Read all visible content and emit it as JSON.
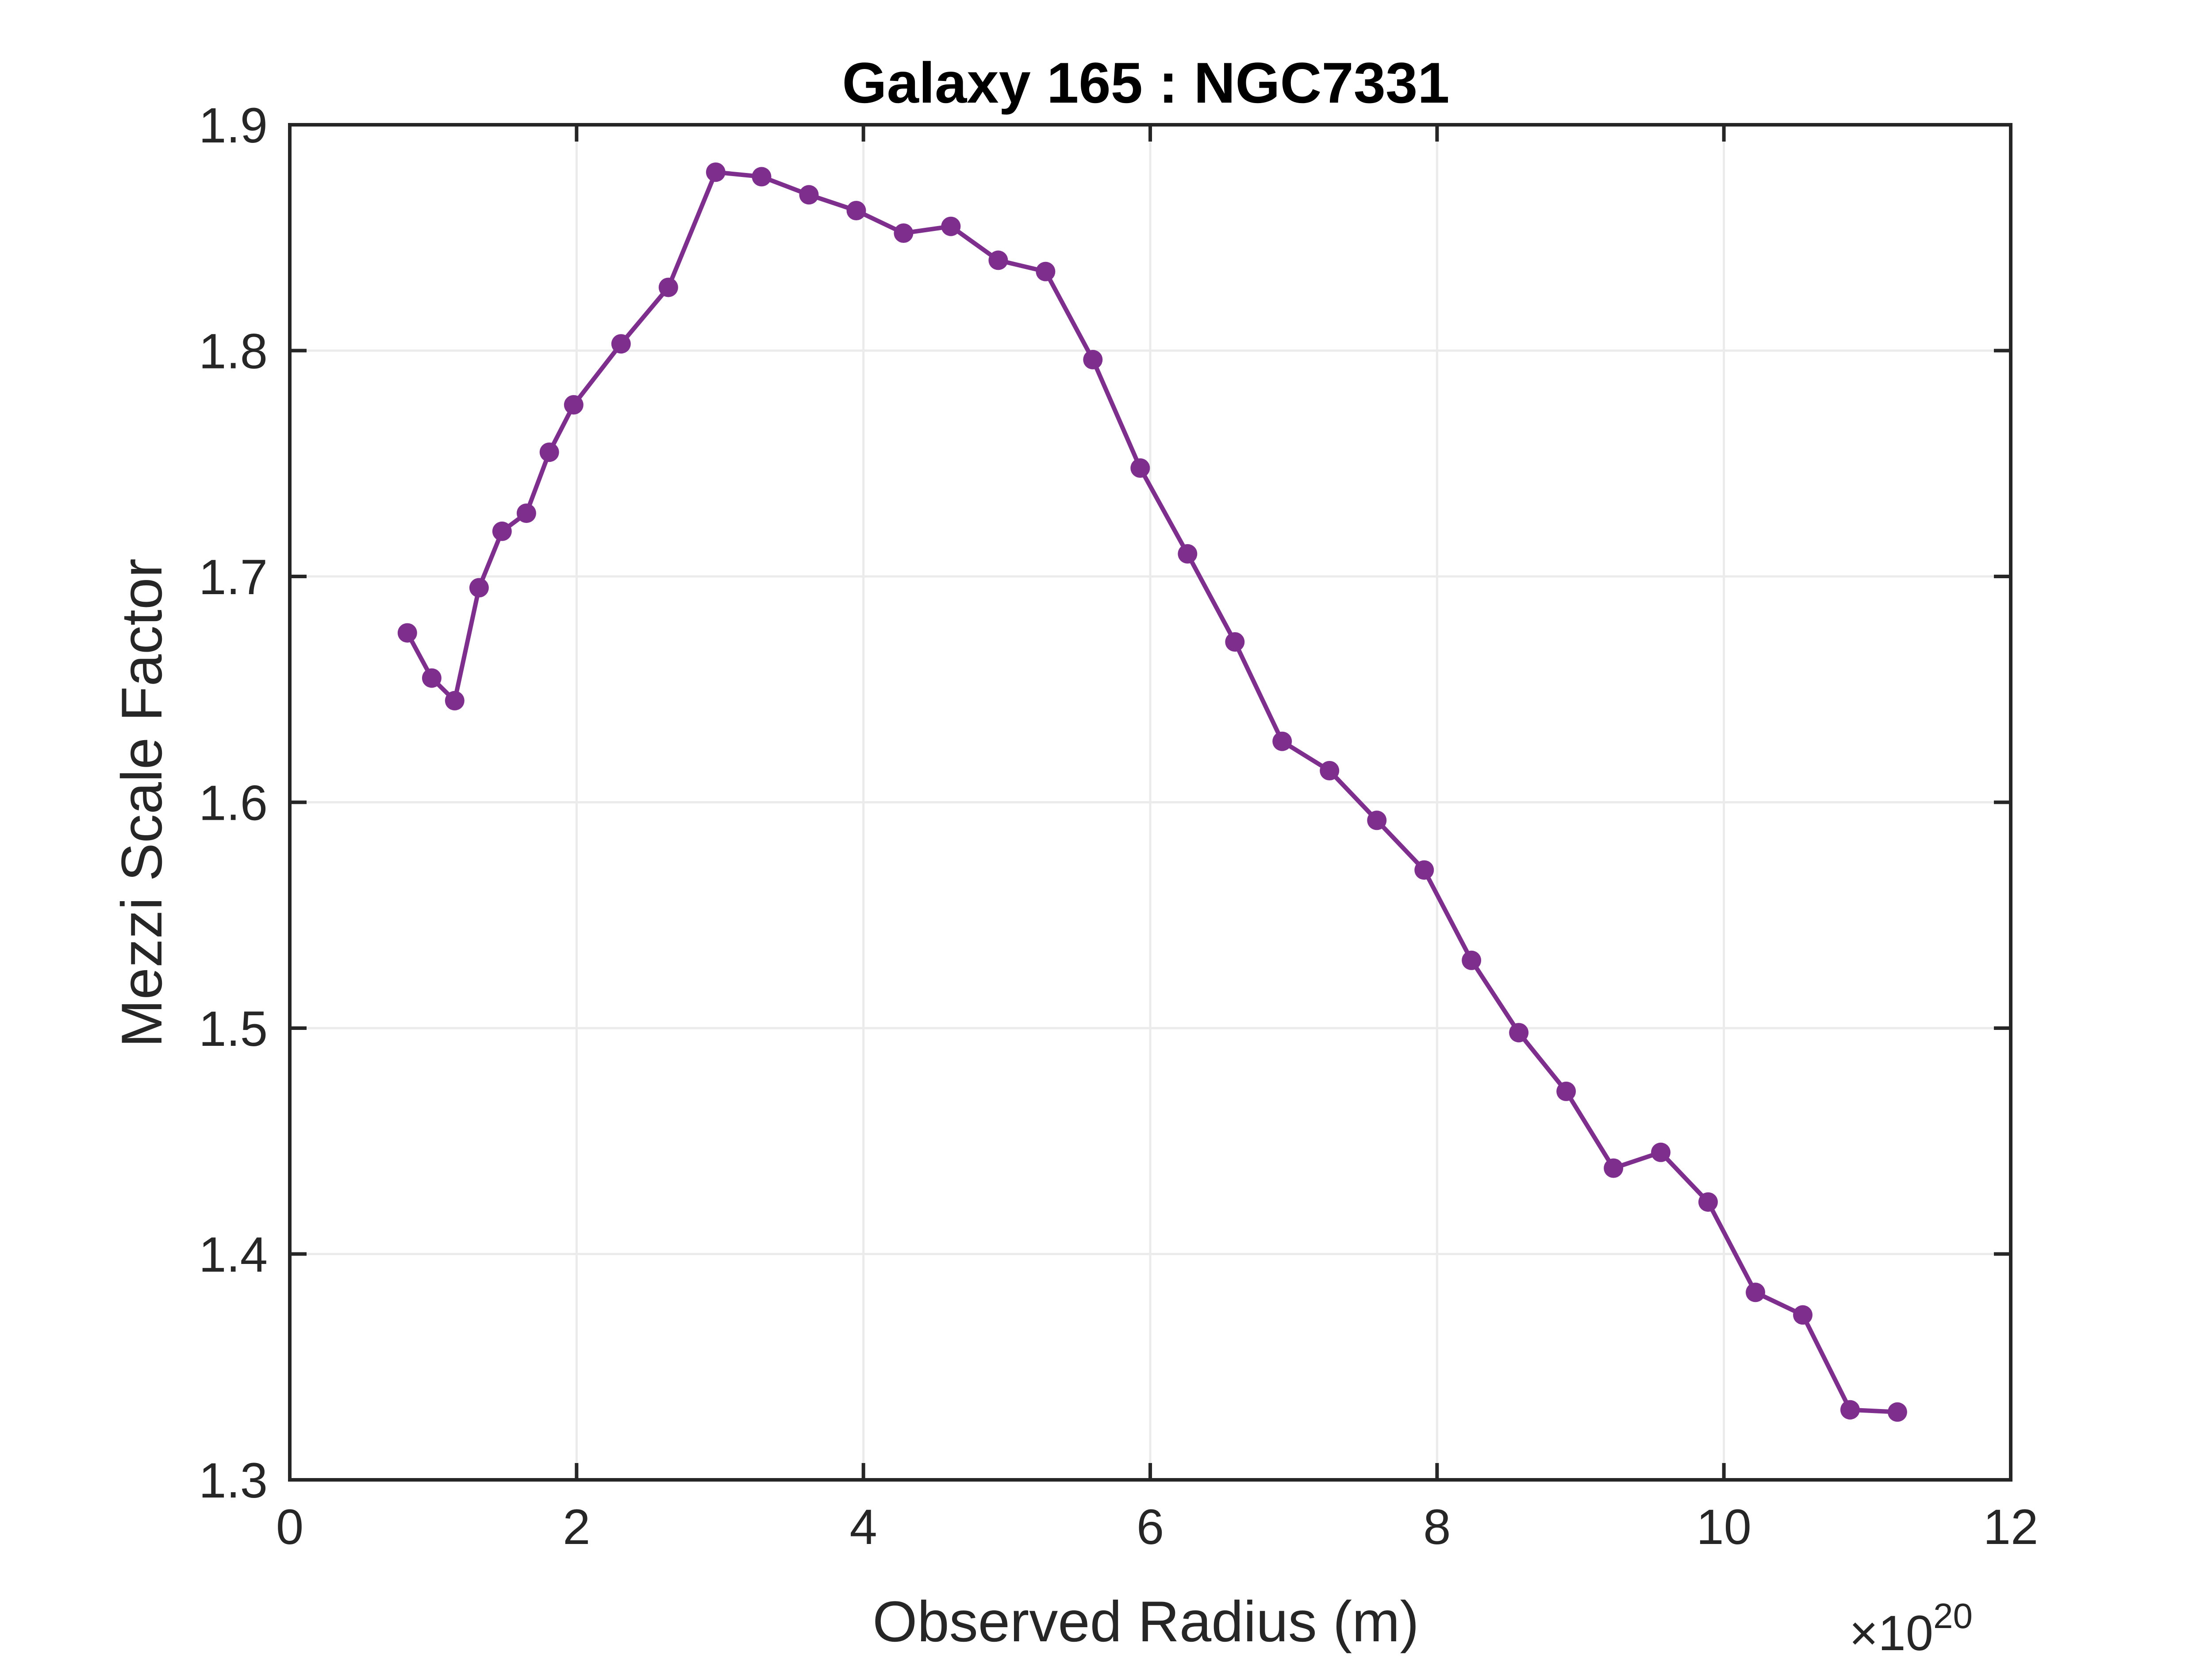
{
  "colors": {
    "series": "#7e2f8e",
    "axis": "#262626",
    "grid": "#ebebeb",
    "title": "#000000"
  },
  "chart_data": {
    "type": "line",
    "title": "Galaxy 165 : NGC7331",
    "xlabel": "Observed Radius (m)",
    "ylabel": "Mezzi Scale Factor",
    "x_exponent_base": "×10",
    "x_exponent_power": "20",
    "xlim": [
      0,
      12
    ],
    "ylim": [
      1.3,
      1.9
    ],
    "xticks": [
      0,
      2,
      4,
      6,
      8,
      10,
      12
    ],
    "yticks": [
      1.3,
      1.4,
      1.5,
      1.6,
      1.7,
      1.8,
      1.9
    ],
    "xtick_labels": [
      "0",
      "2",
      "4",
      "6",
      "8",
      "10",
      "12"
    ],
    "ytick_labels": [
      "1.3",
      "1.4",
      "1.5",
      "1.6",
      "1.7",
      "1.8",
      "1.9"
    ],
    "grid": true,
    "marker": "circle",
    "series": [
      {
        "x": [
          0.82,
          0.99,
          1.15,
          1.32,
          1.48,
          1.65,
          1.81,
          1.98,
          2.31,
          2.64,
          2.97,
          3.29,
          3.62,
          3.95,
          4.28,
          4.61,
          4.94,
          5.27,
          5.6,
          5.93,
          6.26,
          6.59,
          6.92,
          7.25,
          7.58,
          7.91,
          8.24,
          8.57,
          8.9,
          9.23,
          9.56,
          9.89,
          10.22,
          10.55,
          10.88,
          11.21
        ],
        "y": [
          1.675,
          1.655,
          1.645,
          1.695,
          1.72,
          1.728,
          1.755,
          1.776,
          1.803,
          1.828,
          1.879,
          1.877,
          1.869,
          1.862,
          1.852,
          1.855,
          1.84,
          1.835,
          1.796,
          1.748,
          1.71,
          1.671,
          1.627,
          1.614,
          1.592,
          1.57,
          1.53,
          1.498,
          1.472,
          1.438,
          1.445,
          1.423,
          1.383,
          1.373,
          1.331,
          1.33
        ]
      }
    ]
  }
}
